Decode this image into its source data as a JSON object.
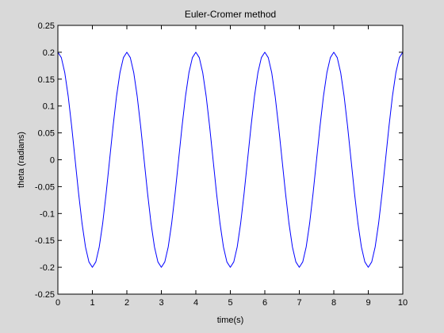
{
  "chart_data": {
    "type": "line",
    "title": "Euler-Cromer method",
    "xlabel": "time(s)",
    "ylabel": "theta (radians)",
    "xlim": [
      0,
      10
    ],
    "ylim": [
      -0.25,
      0.25
    ],
    "xticks": [
      "0",
      "1",
      "2",
      "3",
      "4",
      "5",
      "6",
      "7",
      "8",
      "9",
      "10"
    ],
    "yticks": [
      "0.25",
      "0.2",
      "0.15",
      "0.1",
      "0.05",
      "0",
      "-0.05",
      "-0.1",
      "-0.15",
      "-0.2",
      "-0.25"
    ],
    "grid": false,
    "series": [
      {
        "name": "",
        "color": "#0000ff",
        "x": [
          0,
          0.1,
          0.2,
          0.3,
          0.4,
          0.5,
          0.6,
          0.7,
          0.8,
          0.9,
          1.0,
          1.1,
          1.2,
          1.3,
          1.4,
          1.5,
          1.6,
          1.7,
          1.8,
          1.9,
          2.0,
          2.1,
          2.2,
          2.3,
          2.4,
          2.5,
          2.6,
          2.7,
          2.8,
          2.9,
          3.0,
          3.1,
          3.2,
          3.3,
          3.4,
          3.5,
          3.6,
          3.7,
          3.8,
          3.9,
          4.0,
          4.1,
          4.2,
          4.3,
          4.4,
          4.5,
          4.6,
          4.7,
          4.8,
          4.9,
          5.0,
          5.1,
          5.2,
          5.3,
          5.4,
          5.5,
          5.6,
          5.7,
          5.8,
          5.9,
          6.0,
          6.1,
          6.2,
          6.3,
          6.4,
          6.5,
          6.6,
          6.7,
          6.8,
          6.9,
          7.0,
          7.1,
          7.2,
          7.3,
          7.4,
          7.5,
          7.6,
          7.7,
          7.8,
          7.9,
          8.0,
          8.1,
          8.2,
          8.3,
          8.4,
          8.5,
          8.6,
          8.7,
          8.8,
          8.9,
          9.0,
          9.1,
          9.2,
          9.3,
          9.4,
          9.5,
          9.6,
          9.7,
          9.8,
          9.9,
          10.0
        ],
        "y": [
          0.2,
          0.19,
          0.162,
          0.118,
          0.062,
          0.0,
          -0.062,
          -0.118,
          -0.162,
          -0.19,
          -0.2,
          -0.19,
          -0.162,
          -0.118,
          -0.062,
          0.0,
          0.062,
          0.118,
          0.162,
          0.19,
          0.2,
          0.19,
          0.162,
          0.118,
          0.062,
          0.0,
          -0.062,
          -0.118,
          -0.162,
          -0.19,
          -0.2,
          -0.19,
          -0.162,
          -0.118,
          -0.062,
          0.0,
          0.062,
          0.118,
          0.162,
          0.19,
          0.2,
          0.19,
          0.162,
          0.118,
          0.062,
          0.0,
          -0.062,
          -0.118,
          -0.162,
          -0.19,
          -0.2,
          -0.19,
          -0.162,
          -0.118,
          -0.062,
          0.0,
          0.062,
          0.118,
          0.162,
          0.19,
          0.2,
          0.19,
          0.162,
          0.118,
          0.062,
          0.0,
          -0.062,
          -0.118,
          -0.162,
          -0.19,
          -0.2,
          -0.19,
          -0.162,
          -0.118,
          -0.062,
          0.0,
          0.062,
          0.118,
          0.162,
          0.19,
          0.2,
          0.19,
          0.162,
          0.118,
          0.062,
          0.0,
          -0.062,
          -0.118,
          -0.162,
          -0.19,
          -0.2,
          -0.19,
          -0.162,
          -0.118,
          -0.062,
          0.0,
          0.062,
          0.118,
          0.162,
          0.19,
          0.2
        ]
      }
    ]
  }
}
